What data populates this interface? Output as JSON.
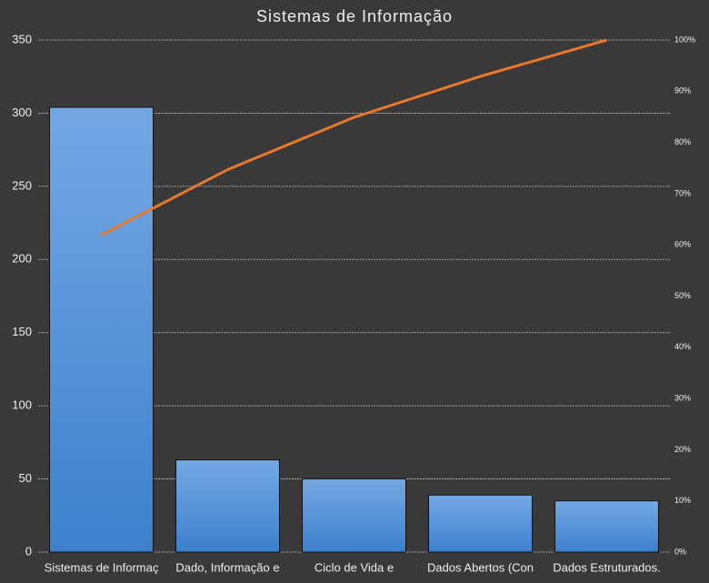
{
  "chart_data": {
    "type": "bar",
    "title": "Sistemas de Informação",
    "categories": [
      "Sistemas de Informaç",
      "Dado, Informação e",
      "Ciclo de Vida e",
      "Dados Abertos  (Con",
      "Dados Estruturados."
    ],
    "series": [
      {
        "type": "bar",
        "color": "#4a8ad4",
        "values": [
          304,
          63,
          50,
          39,
          35
        ]
      },
      {
        "type": "line",
        "axis": "y2",
        "color": "#e8782e",
        "values": [
          61.9,
          74.7,
          84.9,
          92.9,
          100
        ]
      }
    ],
    "ylim": [
      0,
      350
    ],
    "yticks": [
      0,
      50,
      100,
      150,
      200,
      250,
      300,
      350
    ],
    "y2lim": [
      0,
      100
    ],
    "y2ticks": [
      {
        "value": 0,
        "label": "0%"
      },
      {
        "value": 10,
        "label": "10%"
      },
      {
        "value": 20,
        "label": "20%"
      },
      {
        "value": 30,
        "label": "30%"
      },
      {
        "value": 40,
        "label": "40%"
      },
      {
        "value": 50,
        "label": "50%"
      },
      {
        "value": 60,
        "label": "60%"
      },
      {
        "value": 70,
        "label": "70%"
      },
      {
        "value": 80,
        "label": "80%"
      },
      {
        "value": 90,
        "label": "90%"
      },
      {
        "value": 100,
        "label": "100%"
      }
    ],
    "grid": true
  }
}
